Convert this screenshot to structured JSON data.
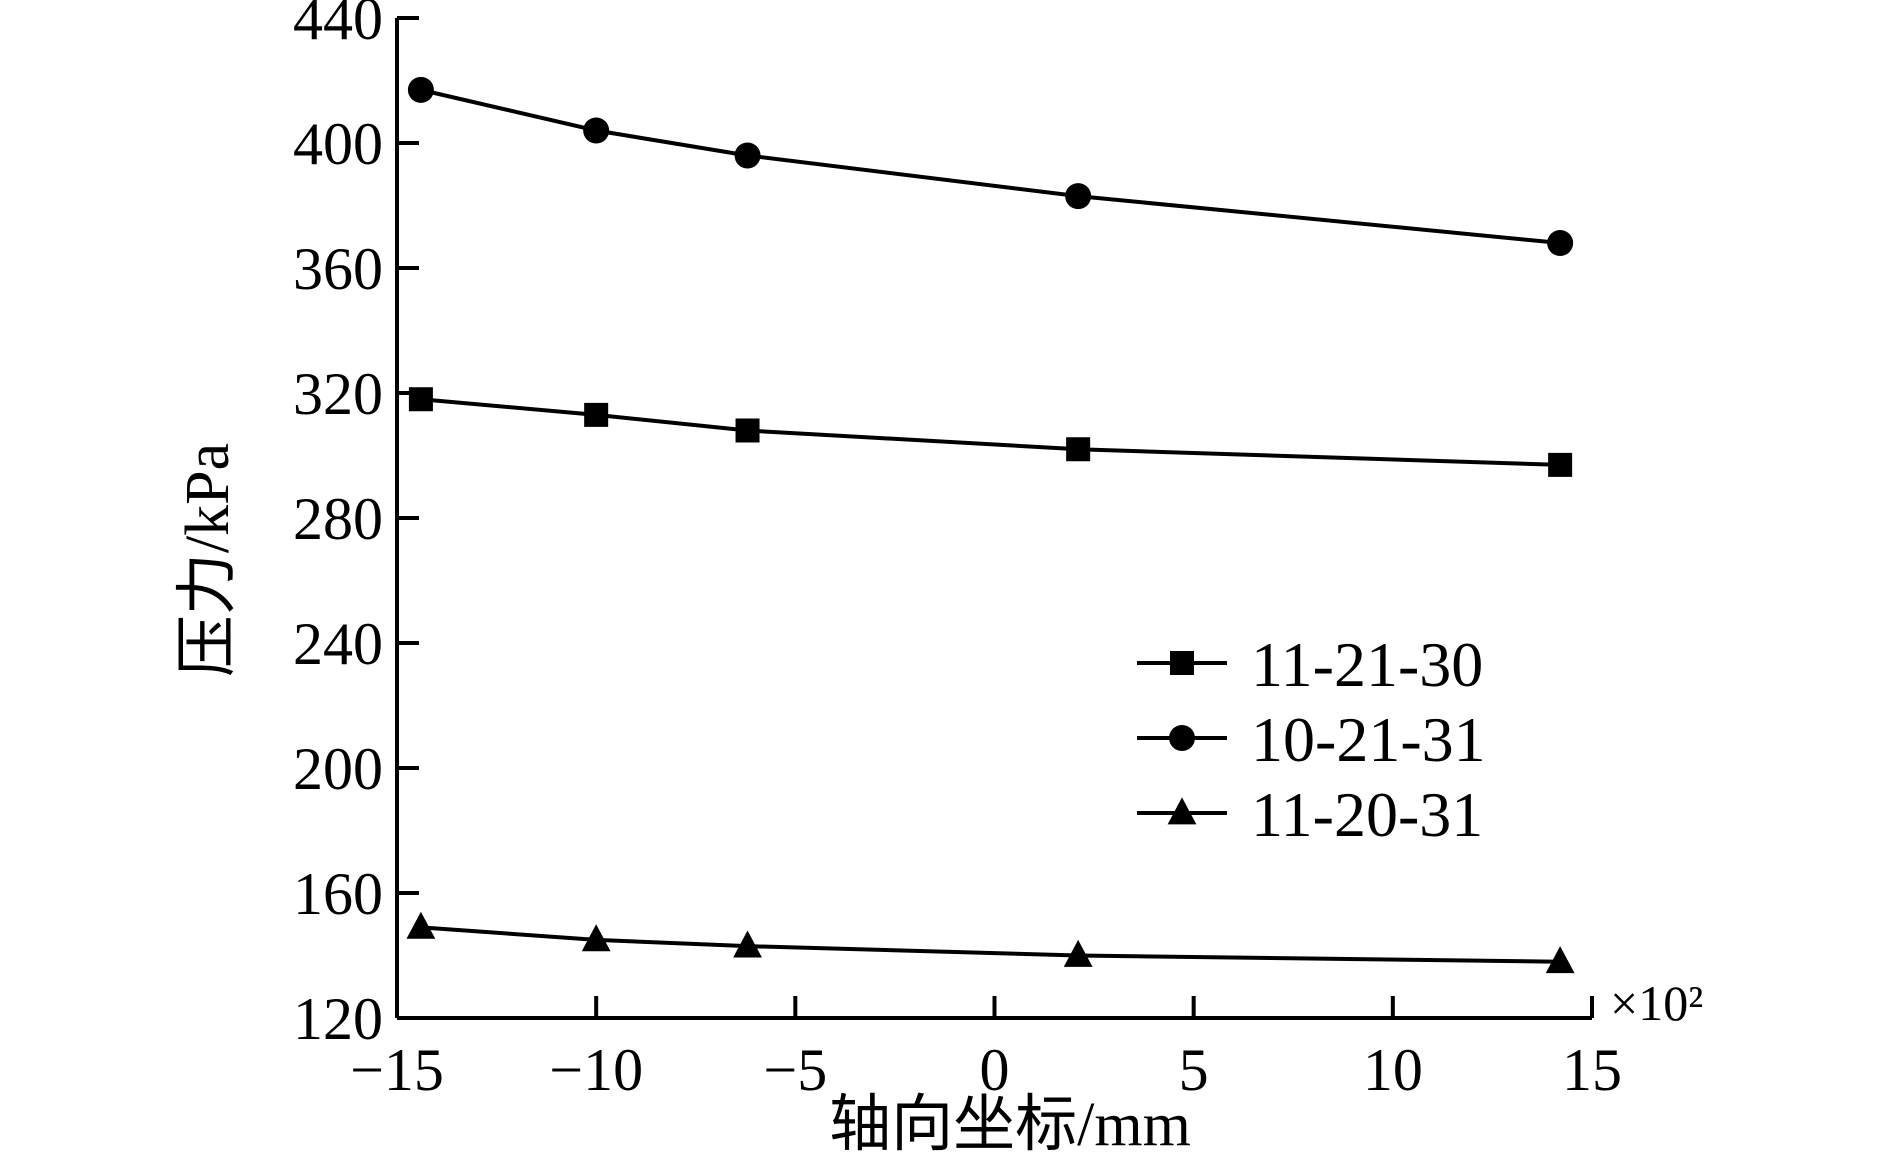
{
  "chart_data": {
    "type": "line",
    "xlabel": "轴向坐标/mm",
    "ylabel": "压力/kPa",
    "x_multiplier": "×10²",
    "xlim": [
      -15,
      15
    ],
    "ylim": [
      120,
      440
    ],
    "xticks": [
      -15,
      -10,
      -5,
      0,
      5,
      10,
      15
    ],
    "xtick_labels": [
      "−15",
      "−10",
      "−5",
      "0",
      "5",
      "10",
      "15"
    ],
    "yticks": [
      120,
      160,
      200,
      240,
      280,
      320,
      360,
      400,
      440
    ],
    "ytick_labels": [
      "120",
      "160",
      "200",
      "240",
      "280",
      "320",
      "360",
      "400",
      "440"
    ],
    "legend_position": "center-right",
    "grid": false,
    "x": [
      -14.4,
      -10,
      -6.2,
      2.1,
      14.2
    ],
    "series": [
      {
        "name": "11-21-30",
        "marker": "square",
        "values": [
          318,
          313,
          308,
          302,
          297
        ]
      },
      {
        "name": "10-21-31",
        "marker": "circle",
        "values": [
          417,
          404,
          396,
          383,
          368
        ]
      },
      {
        "name": "11-20-31",
        "marker": "triangle",
        "values": [
          149,
          145,
          143,
          140,
          138
        ]
      }
    ],
    "colors": {
      "line": "#000000",
      "marker": "#000000",
      "background": "#ffffff"
    }
  }
}
